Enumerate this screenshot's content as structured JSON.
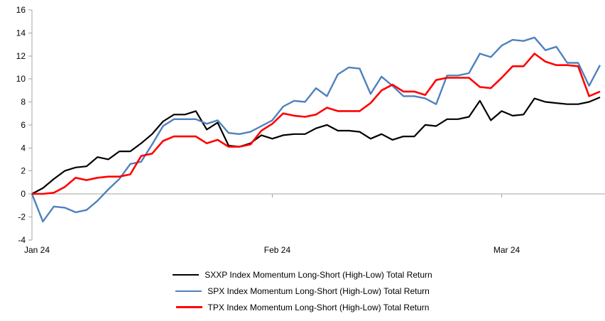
{
  "chart_data": {
    "type": "line",
    "title": "",
    "legend_position": "bottom",
    "grid": "zero-line-only",
    "axis_color": "#a6a6a6",
    "text_color": "#000000",
    "ylim": [
      -4,
      16
    ],
    "y_ticks": [
      16,
      14,
      12,
      10,
      8,
      6,
      4,
      2,
      0,
      -2,
      -4
    ],
    "x_tick_labels": [
      "Jan 24",
      "Feb 24",
      "Mar 24"
    ],
    "x_tick_indices": [
      0,
      22,
      43
    ],
    "n_points": 53,
    "series": [
      {
        "name": "SXXP Index Momentum Long-Short (High-Low) Total Return",
        "color": "#000000",
        "values": [
          0.0,
          0.5,
          1.3,
          2.0,
          2.3,
          2.4,
          3.2,
          3.0,
          3.7,
          3.7,
          4.4,
          5.2,
          6.3,
          6.9,
          6.9,
          7.2,
          5.6,
          6.2,
          4.2,
          4.1,
          4.4,
          5.1,
          4.8,
          5.1,
          5.2,
          5.2,
          5.7,
          6.0,
          5.5,
          5.5,
          5.4,
          4.8,
          5.2,
          4.7,
          5.0,
          5.0,
          6.0,
          5.9,
          6.5,
          6.5,
          6.7,
          8.1,
          6.4,
          7.2,
          6.8,
          6.9,
          8.3,
          8.0,
          7.9,
          7.8,
          7.8,
          8.0,
          8.4
        ]
      },
      {
        "name": "SPX Index Momentum Long-Short (High-Low) Total Return",
        "color": "#4f81bd",
        "values": [
          0.0,
          -2.4,
          -1.1,
          -1.2,
          -1.6,
          -1.4,
          -0.6,
          0.4,
          1.3,
          2.6,
          2.8,
          4.3,
          5.9,
          6.5,
          6.5,
          6.5,
          6.1,
          6.4,
          5.3,
          5.2,
          5.4,
          5.9,
          6.4,
          7.6,
          8.1,
          8.0,
          9.2,
          8.5,
          10.4,
          11.0,
          10.9,
          8.7,
          10.2,
          9.4,
          8.5,
          8.5,
          8.3,
          7.8,
          10.3,
          10.3,
          10.5,
          12.2,
          11.9,
          12.9,
          13.4,
          13.3,
          13.6,
          12.5,
          12.8,
          11.4,
          11.4,
          9.4,
          11.2
        ]
      },
      {
        "name": "TPX Index Momentum Long-Short (High-Low) Total Return",
        "color": "#ff0000",
        "values": [
          0.0,
          0.0,
          0.1,
          0.6,
          1.4,
          1.2,
          1.4,
          1.5,
          1.5,
          1.7,
          3.3,
          3.5,
          4.6,
          5.0,
          5.0,
          5.0,
          4.4,
          4.7,
          4.1,
          4.1,
          4.3,
          5.5,
          6.1,
          7.0,
          6.8,
          6.7,
          6.9,
          7.5,
          7.2,
          7.2,
          7.2,
          7.9,
          9.0,
          9.5,
          8.9,
          8.9,
          8.6,
          9.9,
          10.1,
          10.1,
          10.1,
          9.3,
          9.2,
          10.1,
          11.1,
          11.1,
          12.2,
          11.5,
          11.2,
          11.2,
          11.1,
          8.5,
          8.9
        ]
      }
    ]
  }
}
